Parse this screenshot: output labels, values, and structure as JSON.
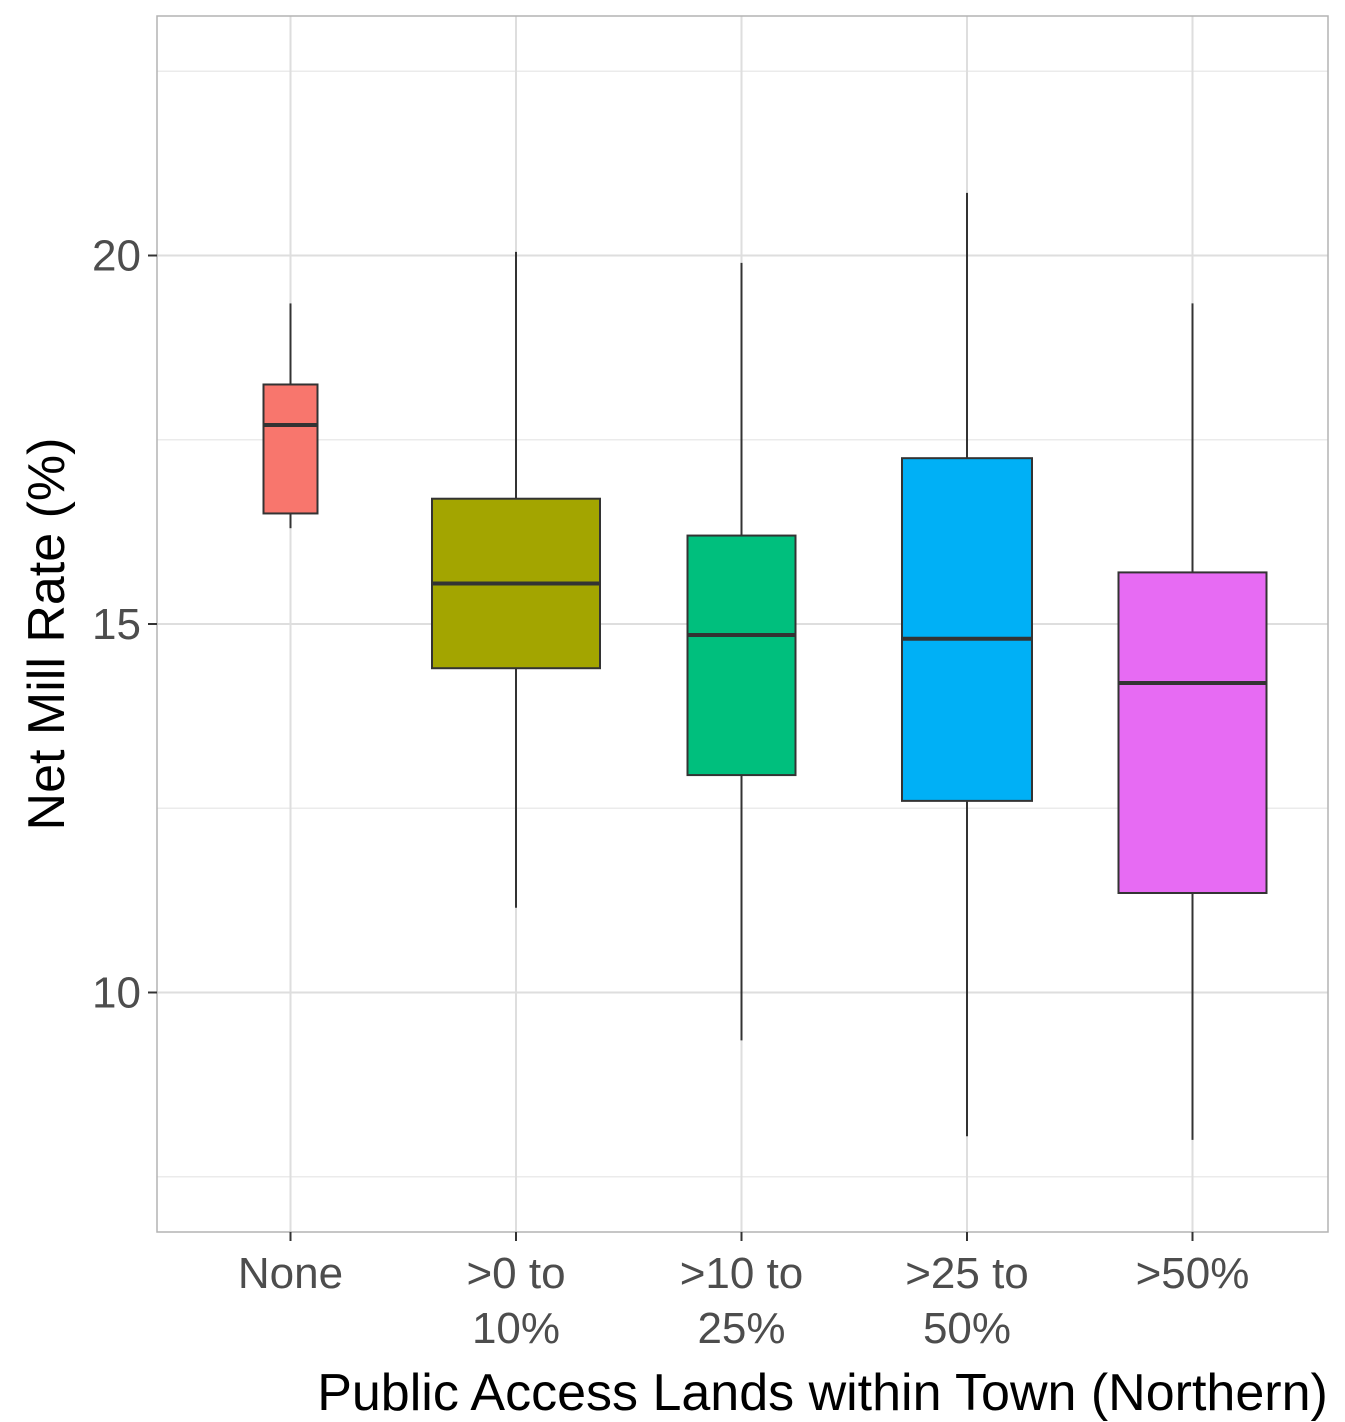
{
  "chart_data": {
    "type": "boxplot",
    "xlabel": "Public Access Lands within Town (Northern)",
    "ylabel": "Net Mill Rate (%)",
    "ylim": [
      6.75,
      23.25
    ],
    "yticks": [
      10,
      15,
      20
    ],
    "grid": true,
    "categories": [
      {
        "lines": [
          "None"
        ]
      },
      {
        "lines": [
          ">0 to",
          "10%"
        ]
      },
      {
        "lines": [
          ">10 to",
          "25%"
        ]
      },
      {
        "lines": [
          ">25 to",
          "50%"
        ]
      },
      {
        "lines": [
          ">50%"
        ]
      }
    ],
    "boxes": [
      {
        "min": 16.3,
        "q1": 16.5,
        "median": 17.7,
        "q3": 18.25,
        "max": 19.35,
        "color": "#F8766D"
      },
      {
        "min": 11.15,
        "q1": 14.4,
        "median": 15.55,
        "q3": 16.7,
        "max": 20.05,
        "color": "#A3A500"
      },
      {
        "min": 9.35,
        "q1": 12.95,
        "median": 14.85,
        "q3": 16.2,
        "max": 19.9,
        "color": "#00BF7D"
      },
      {
        "min": 8.05,
        "q1": 12.6,
        "median": 14.8,
        "q3": 17.25,
        "max": 20.85,
        "color": "#00B0F6"
      },
      {
        "min": 8.0,
        "q1": 11.35,
        "median": 14.2,
        "q3": 15.7,
        "max": 19.35,
        "color": "#E76BF3"
      }
    ]
  }
}
